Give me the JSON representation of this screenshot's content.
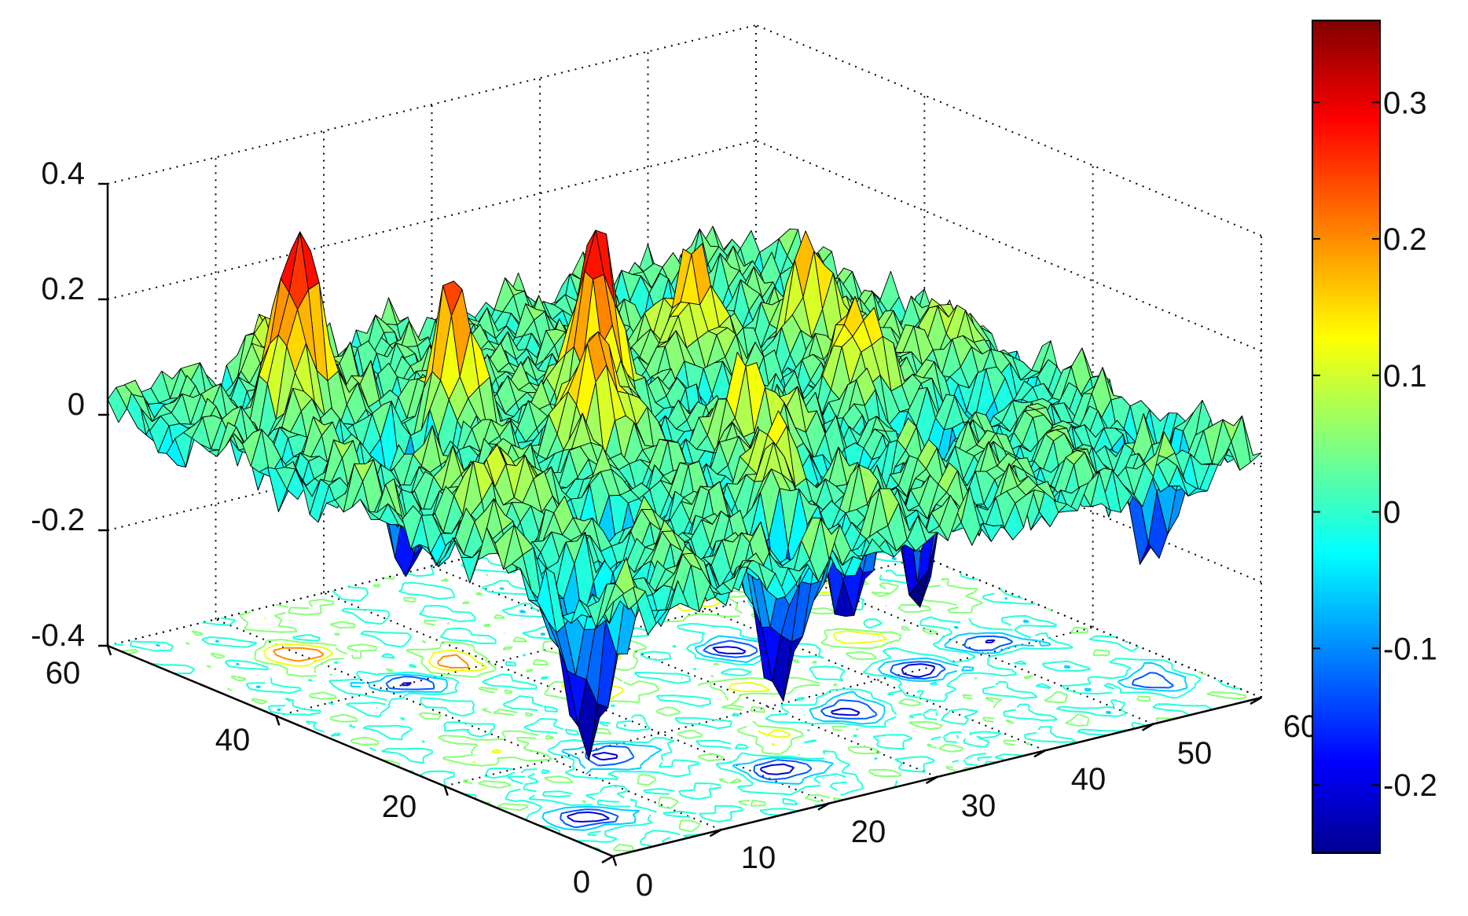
{
  "chart_data": {
    "type": "surface",
    "title": "",
    "xlabel": "",
    "ylabel": "",
    "zlabel": "",
    "grid": true,
    "colormap": "jet",
    "x_range": [
      0,
      60
    ],
    "y_range": [
      0,
      60
    ],
    "z_range": [
      -0.4,
      0.4
    ],
    "color_range": [
      -0.25,
      0.36
    ],
    "x_ticks": [
      "0",
      "10",
      "20",
      "30",
      "40",
      "50",
      "60"
    ],
    "y_ticks": [
      "0",
      "20",
      "40",
      "60"
    ],
    "z_ticks": [
      "-0.4",
      "-0.2",
      "0",
      "0.2",
      "0.4"
    ],
    "colorbar_ticks": [
      "-0.2",
      "-0.1",
      "0",
      "0.1",
      "0.2",
      "0.3"
    ],
    "colorbar_values": [
      -0.2,
      -0.1,
      0,
      0.1,
      0.2,
      0.3
    ],
    "contour_projection": "floor",
    "peaks": [
      {
        "x": 18,
        "y": 42,
        "z": 0.25
      },
      {
        "x": 10,
        "y": 50,
        "z": 0.3
      },
      {
        "x": 28,
        "y": 38,
        "z": 0.31
      },
      {
        "x": 22,
        "y": 30,
        "z": 0.22
      },
      {
        "x": 40,
        "y": 42,
        "z": 0.22
      },
      {
        "x": 50,
        "y": 40,
        "z": 0.2
      },
      {
        "x": 8,
        "y": 24,
        "z": 0.15
      },
      {
        "x": 32,
        "y": 24,
        "z": 0.15
      },
      {
        "x": 45,
        "y": 28,
        "z": 0.16
      },
      {
        "x": 26,
        "y": 14,
        "z": 0.12
      },
      {
        "x": 55,
        "y": 32,
        "z": 0.12
      },
      {
        "x": 14,
        "y": 58,
        "z": 0.12
      }
    ],
    "valleys": [
      {
        "x": 4,
        "y": 8,
        "z": -0.28
      },
      {
        "x": 14,
        "y": 18,
        "z": -0.26
      },
      {
        "x": 22,
        "y": 8,
        "z": -0.28
      },
      {
        "x": 34,
        "y": 16,
        "z": -0.25
      },
      {
        "x": 44,
        "y": 20,
        "z": -0.26
      },
      {
        "x": 36,
        "y": 32,
        "z": -0.22
      },
      {
        "x": 52,
        "y": 22,
        "z": -0.2
      },
      {
        "x": 12,
        "y": 40,
        "z": -0.2
      },
      {
        "x": 46,
        "y": 52,
        "z": -0.18
      },
      {
        "x": 56,
        "y": 8,
        "z": -0.18
      }
    ]
  }
}
